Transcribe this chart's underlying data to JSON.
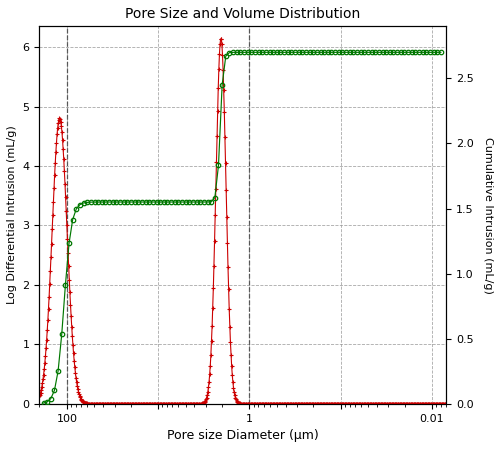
{
  "title": "Pore Size and Volume Distribution",
  "xlabel": "Pore size Diameter (μm)",
  "ylabel_left": "Log Differential Intrusion (mL/g)",
  "ylabel_right": "Cumulative Intrusion (mL/g)",
  "ylim_left": [
    0,
    6.35
  ],
  "ylim_right": [
    0.0,
    2.9
  ],
  "yticks_left": [
    0,
    1,
    2,
    3,
    4,
    5,
    6
  ],
  "yticks_right": [
    0.0,
    0.5,
    1.0,
    1.5,
    2.0,
    2.5
  ],
  "xlim": [
    200,
    0.007
  ],
  "vlines": [
    100,
    1.0
  ],
  "red_color": "#cc0000",
  "green_color": "#007700",
  "bg_color": "#ffffff",
  "grid_color": "#999999"
}
